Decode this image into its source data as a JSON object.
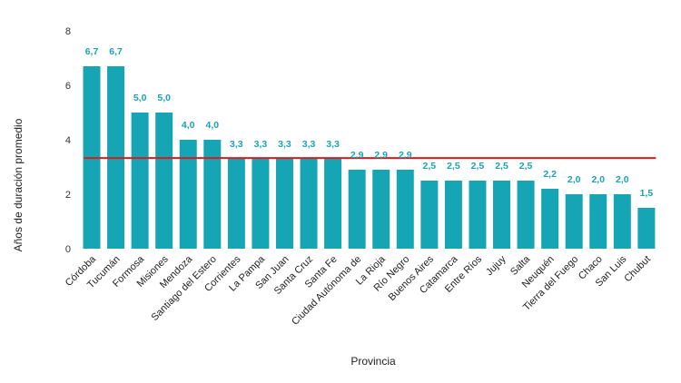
{
  "chart_data": {
    "type": "bar",
    "xlabel": "Provincia",
    "ylabel": "Años de duración promedio",
    "ylim": [
      0,
      8
    ],
    "yticks": [
      "0",
      "2",
      "4",
      "6",
      "8"
    ],
    "grid": false,
    "bar_color": "#16a5b5",
    "label_color": "#1aa3b5",
    "average_line_color": "#e01818",
    "average_value": 3.33,
    "categories": [
      "Córdoba",
      "Tucumán",
      "Formosa",
      "Misiones",
      "Mendoza",
      "Santiago del Estero",
      "Corrientes",
      "La Pampa",
      "San Juan",
      "Santa Cruz",
      "Santa Fe",
      "Ciudad Autónoma de",
      "La Rioja",
      "Río Negro",
      "Buenos Aires",
      "Catamarca",
      "Entre Ríos",
      "Jujuy",
      "Salta",
      "Neuquén",
      "Tierra del Fuego",
      "Chaco",
      "San Luis",
      "Chubut"
    ],
    "values": [
      6.7,
      6.7,
      5.0,
      5.0,
      4.0,
      4.0,
      3.3,
      3.3,
      3.3,
      3.3,
      3.3,
      2.9,
      2.9,
      2.9,
      2.5,
      2.5,
      2.5,
      2.5,
      2.5,
      2.2,
      2.0,
      2.0,
      2.0,
      1.5
    ],
    "value_labels": [
      "6,7",
      "6,7",
      "5,0",
      "5,0",
      "4,0",
      "4,0",
      "3,3",
      "3,3",
      "3,3",
      "3,3",
      "3,3",
      "2,9",
      "2,9",
      "2,9",
      "2,5",
      "2,5",
      "2,5",
      "2,5",
      "2,5",
      "2,2",
      "2,0",
      "2,0",
      "2,0",
      "1,5"
    ]
  }
}
